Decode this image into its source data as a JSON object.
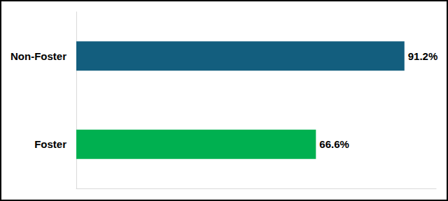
{
  "chart_data": {
    "type": "bar",
    "orientation": "horizontal",
    "categories": [
      "Non-Foster",
      "Foster"
    ],
    "values": [
      91.2,
      66.6
    ],
    "value_labels": [
      "91.2%",
      "66.6%"
    ],
    "colors": [
      "#135e7e",
      "#00b050"
    ],
    "xlim": [
      0,
      100
    ],
    "data_labels": true,
    "tick_labels": "y",
    "grid": false
  }
}
